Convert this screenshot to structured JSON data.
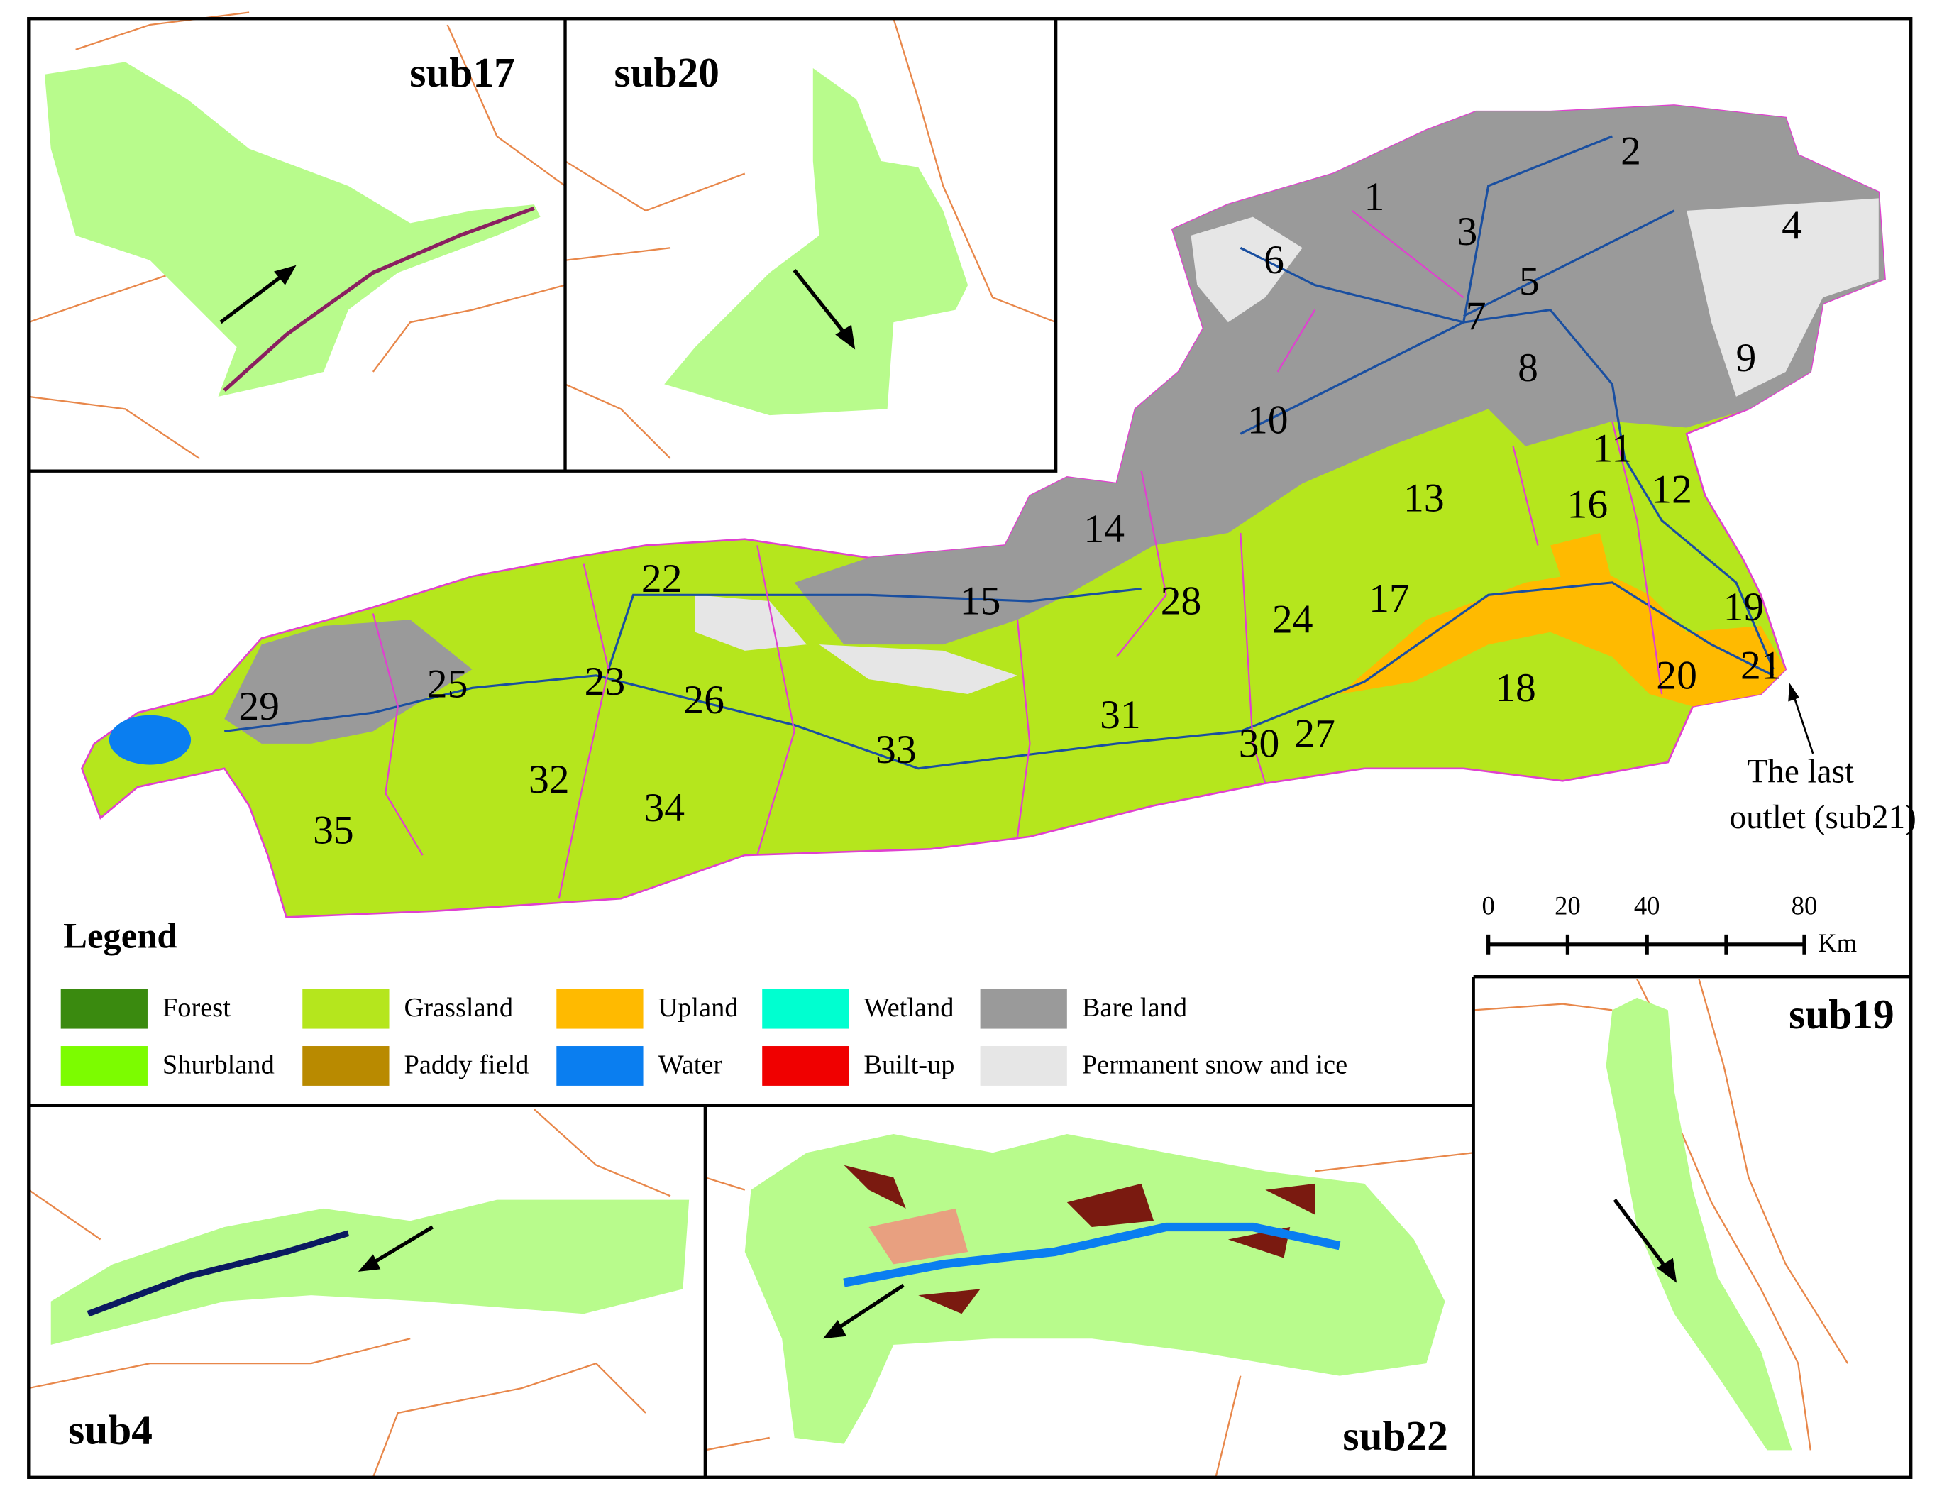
{
  "insets": [
    "sub17",
    "sub20",
    "sub4",
    "sub22",
    "sub19"
  ],
  "subbasins": [
    "1",
    "2",
    "3",
    "4",
    "5",
    "6",
    "7",
    "8",
    "9",
    "10",
    "11",
    "12",
    "13",
    "14",
    "15",
    "16",
    "17",
    "18",
    "19",
    "20",
    "21",
    "22",
    "23",
    "24",
    "25",
    "26",
    "27",
    "28",
    "29",
    "30",
    "31",
    "32",
    "33",
    "34",
    "35"
  ],
  "legend": {
    "title": "Legend",
    "items": [
      {
        "name": "Forest",
        "color": "#3a8a0f"
      },
      {
        "name": "Grassland",
        "color": "#b5e61d"
      },
      {
        "name": "Upland",
        "color": "#ffba00"
      },
      {
        "name": "Wetland",
        "color": "#00ffd0"
      },
      {
        "name": "Bare land",
        "color": "#9a9a9a"
      },
      {
        "name": "Shurbland",
        "color": "#7cfc00"
      },
      {
        "name": "Paddy field",
        "color": "#b98a00"
      },
      {
        "name": "Water",
        "color": "#0a7ef0"
      },
      {
        "name": "Built-up",
        "color": "#f00000"
      },
      {
        "name": "Permanent snow and ice",
        "color": "#e6e6e6"
      }
    ]
  },
  "scale_bar": {
    "ticks": [
      "0",
      "20",
      "40",
      "80"
    ],
    "unit": "Km"
  },
  "annotation": [
    "The last",
    "outlet (sub21)"
  ]
}
